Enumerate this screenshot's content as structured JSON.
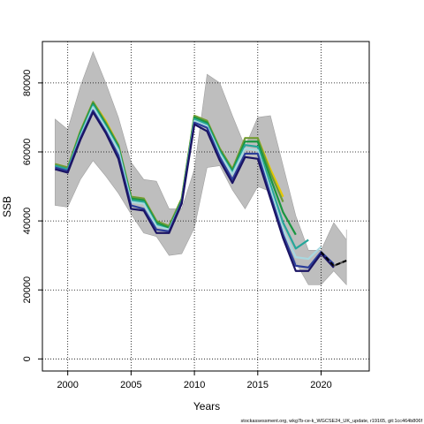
{
  "chart_data": {
    "type": "line",
    "xlabel": "Years",
    "ylabel": "SSB",
    "xlim": [
      1998,
      2023.8
    ],
    "ylim": [
      -3500,
      92000
    ],
    "x_ticks": [
      2000,
      2005,
      2010,
      2015,
      2020
    ],
    "y_ticks": [
      0,
      20000,
      40000,
      60000,
      80000
    ],
    "grid": true,
    "legend": "none",
    "band": {
      "x": [
        1999,
        2000,
        2001,
        2002,
        2003,
        2004,
        2005,
        2006,
        2007,
        2008,
        2009,
        2010,
        2011,
        2012,
        2013,
        2014,
        2015,
        2016,
        2017,
        2018,
        2019,
        2020,
        2021,
        2022
      ],
      "upper": [
        69500,
        66500,
        79000,
        89000,
        80000,
        70000,
        57000,
        52000,
        51500,
        43500,
        43500,
        55000,
        82500,
        80000,
        70500,
        61500,
        70000,
        70500,
        56000,
        41500,
        31500,
        31500,
        39500,
        34500
      ],
      "lower": [
        44500,
        44000,
        52000,
        57500,
        53000,
        48000,
        42000,
        36500,
        35500,
        30000,
        30500,
        38000,
        55500,
        56000,
        49000,
        43500,
        50000,
        48500,
        36000,
        28000,
        21500,
        21500,
        25500,
        21500
      ],
      "extra_upper": {
        "x": 2022,
        "y": 37500
      },
      "extra_lower": {
        "x": 2022,
        "y": 21500
      }
    },
    "series": [
      {
        "color": "#e6c800",
        "x": [
          1999,
          2000,
          2001,
          2002,
          2003,
          2004,
          2005,
          2006,
          2007,
          2008,
          2009,
          2010,
          2011,
          2012,
          2013,
          2014,
          2015,
          2016,
          2017
        ],
        "values": [
          56500,
          55500,
          66000,
          74500,
          69000,
          62000,
          47000,
          46500,
          40000,
          38500,
          46500,
          70500,
          69000,
          61000,
          55000,
          64000,
          64000,
          55000,
          47000
        ]
      },
      {
        "color": "#6e9b3a",
        "x": [
          1999,
          2000,
          2001,
          2002,
          2003,
          2004,
          2005,
          2006,
          2007,
          2008,
          2009,
          2010,
          2011,
          2012,
          2013,
          2014,
          2015,
          2016,
          2017
        ],
        "values": [
          56500,
          55500,
          66000,
          74500,
          68500,
          62000,
          47000,
          46500,
          40000,
          38500,
          46500,
          70500,
          69000,
          61000,
          55000,
          64000,
          64000,
          54000,
          45500
        ]
      },
      {
        "color": "#1a9641",
        "x": [
          1999,
          2000,
          2001,
          2002,
          2003,
          2004,
          2005,
          2006,
          2007,
          2008,
          2009,
          2010,
          2011,
          2012,
          2013,
          2014,
          2015,
          2016,
          2017,
          2018
        ],
        "values": [
          56000,
          55000,
          65500,
          74000,
          68000,
          61500,
          46500,
          46000,
          39500,
          38000,
          46000,
          70000,
          68500,
          60500,
          54500,
          63000,
          63000,
          52500,
          42500,
          36000
        ]
      },
      {
        "color": "#26a69a",
        "x": [
          1999,
          2000,
          2001,
          2002,
          2003,
          2004,
          2005,
          2006,
          2007,
          2008,
          2009,
          2010,
          2011,
          2012,
          2013,
          2014,
          2015,
          2016,
          2017,
          2018,
          2019
        ],
        "values": [
          56000,
          55000,
          65000,
          73500,
          67500,
          61000,
          46000,
          45500,
          39000,
          37500,
          45500,
          69500,
          68000,
          60000,
          54000,
          62000,
          61500,
          50500,
          39500,
          32000,
          34500
        ]
      },
      {
        "color": "#a8d8e0",
        "x": [
          1999,
          2000,
          2001,
          2002,
          2003,
          2004,
          2005,
          2006,
          2007,
          2008,
          2009,
          2010,
          2011,
          2012,
          2013,
          2014,
          2015,
          2016,
          2017,
          2018,
          2019,
          2020
        ],
        "values": [
          55500,
          54500,
          64500,
          73000,
          67000,
          60500,
          45500,
          45000,
          38500,
          37500,
          45500,
          69000,
          67500,
          59500,
          53500,
          61000,
          60500,
          49000,
          37500,
          29500,
          29000,
          32500
        ]
      },
      {
        "color": "#2c3e9a",
        "x": [
          1999,
          2000,
          2001,
          2002,
          2003,
          2004,
          2005,
          2006,
          2007,
          2008,
          2009,
          2010,
          2011,
          2012,
          2013,
          2014,
          2015,
          2016,
          2017,
          2018,
          2019,
          2020,
          2021
        ],
        "values": [
          55500,
          54500,
          64000,
          72000,
          66000,
          59000,
          44500,
          43500,
          37500,
          37000,
          45500,
          68500,
          67000,
          58500,
          52000,
          59500,
          59500,
          47500,
          36000,
          27000,
          26500,
          31000,
          27500
        ]
      },
      {
        "color": "#1b1464",
        "x": [
          1999,
          2000,
          2001,
          2002,
          2003,
          2004,
          2005,
          2006,
          2007,
          2008,
          2009,
          2010,
          2011,
          2012,
          2013,
          2014,
          2015,
          2016,
          2017,
          2018,
          2019,
          2020,
          2021
        ],
        "values": [
          55000,
          54000,
          63500,
          71500,
          65500,
          58000,
          43500,
          43000,
          36500,
          36500,
          45000,
          68000,
          66000,
          57500,
          51000,
          58500,
          58000,
          46500,
          35000,
          25500,
          25500,
          30500,
          26500
        ]
      }
    ],
    "forecast": {
      "color": "#000000",
      "x": [
        2020,
        2021,
        2022
      ],
      "values": [
        31000,
        27000,
        28500
      ]
    },
    "forecast_solid": {
      "color": "#555555",
      "x": [
        2021,
        2022
      ],
      "values": [
        27000,
        28500
      ]
    },
    "footer": "stockassessment.org, wkg7b-ce-k_WGCSE24_UK_update, r19165, git:1cc464b806f"
  }
}
